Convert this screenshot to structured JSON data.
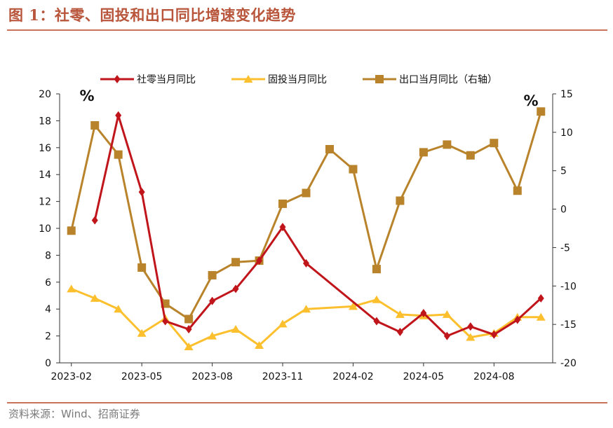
{
  "figure": {
    "title": "图 1：社零、固投和出口同比增速变化趋势",
    "source": "资料来源：Wind、招商证券"
  },
  "chart_data": {
    "type": "line",
    "title": "",
    "xlabel": "",
    "x_tick_labels": [
      "2023-02",
      "2023-05",
      "2023-08",
      "2023-11",
      "2024-02",
      "2024-05",
      "2024-08"
    ],
    "y_left": {
      "label": "%",
      "lim": [
        0,
        20
      ],
      "ticks": [
        0,
        2,
        4,
        6,
        8,
        10,
        12,
        14,
        16,
        18,
        20
      ]
    },
    "y_right": {
      "label": "%",
      "lim": [
        -20,
        15
      ],
      "ticks": [
        -20,
        -15,
        -10,
        -5,
        0,
        5,
        10,
        15
      ]
    },
    "legend_position": "top",
    "grid": false,
    "series": [
      {
        "name": "社零当月同比",
        "axis": "left",
        "color": "#c0151b",
        "marker": "diamond",
        "points": [
          {
            "x": "2023-03",
            "y": 10.6
          },
          {
            "x": "2023-04",
            "y": 18.4
          },
          {
            "x": "2023-05",
            "y": 12.7
          },
          {
            "x": "2023-06",
            "y": 3.1
          },
          {
            "x": "2023-07",
            "y": 2.5
          },
          {
            "x": "2023-08",
            "y": 4.6
          },
          {
            "x": "2023-09",
            "y": 5.5
          },
          {
            "x": "2023-10",
            "y": 7.6
          },
          {
            "x": "2023-11",
            "y": 10.1
          },
          {
            "x": "2023-12",
            "y": 7.4
          },
          {
            "x": "2024-03",
            "y": 3.1
          },
          {
            "x": "2024-04",
            "y": 2.3
          },
          {
            "x": "2024-05",
            "y": 3.7
          },
          {
            "x": "2024-06",
            "y": 2.0
          },
          {
            "x": "2024-07",
            "y": 2.7
          },
          {
            "x": "2024-08",
            "y": 2.1
          },
          {
            "x": "2024-09",
            "y": 3.2
          },
          {
            "x": "2024-10",
            "y": 4.8
          }
        ]
      },
      {
        "name": "固投当月同比",
        "axis": "left",
        "color": "#fcc02e",
        "marker": "triangle",
        "points": [
          {
            "x": "2023-02",
            "y": 5.5
          },
          {
            "x": "2023-03",
            "y": 4.8
          },
          {
            "x": "2023-04",
            "y": 4.0
          },
          {
            "x": "2023-05",
            "y": 2.2
          },
          {
            "x": "2023-06",
            "y": 3.3
          },
          {
            "x": "2023-07",
            "y": 1.2
          },
          {
            "x": "2023-08",
            "y": 2.0
          },
          {
            "x": "2023-09",
            "y": 2.5
          },
          {
            "x": "2023-10",
            "y": 1.3
          },
          {
            "x": "2023-11",
            "y": 2.9
          },
          {
            "x": "2023-12",
            "y": 4.0
          },
          {
            "x": "2024-02",
            "y": 4.2
          },
          {
            "x": "2024-03",
            "y": 4.7
          },
          {
            "x": "2024-04",
            "y": 3.6
          },
          {
            "x": "2024-05",
            "y": 3.5
          },
          {
            "x": "2024-06",
            "y": 3.6
          },
          {
            "x": "2024-07",
            "y": 1.9
          },
          {
            "x": "2024-08",
            "y": 2.2
          },
          {
            "x": "2024-09",
            "y": 3.4
          },
          {
            "x": "2024-10",
            "y": 3.4
          }
        ]
      },
      {
        "name": "出口当月同比（右轴）",
        "axis": "right",
        "color": "#b8832b",
        "marker": "square",
        "points": [
          {
            "x": "2023-02",
            "y": -2.8
          },
          {
            "x": "2023-03",
            "y": 10.9
          },
          {
            "x": "2023-04",
            "y": 7.1
          },
          {
            "x": "2023-05",
            "y": -7.6
          },
          {
            "x": "2023-06",
            "y": -12.3
          },
          {
            "x": "2023-07",
            "y": -14.3
          },
          {
            "x": "2023-08",
            "y": -8.6
          },
          {
            "x": "2023-09",
            "y": -6.9
          },
          {
            "x": "2023-10",
            "y": -6.7
          },
          {
            "x": "2023-11",
            "y": 0.7
          },
          {
            "x": "2023-12",
            "y": 2.1
          },
          {
            "x": "2024-01",
            "y": 7.8
          },
          {
            "x": "2024-02",
            "y": 5.2
          },
          {
            "x": "2024-03",
            "y": -7.8
          },
          {
            "x": "2024-04",
            "y": 1.1
          },
          {
            "x": "2024-05",
            "y": 7.4
          },
          {
            "x": "2024-06",
            "y": 8.4
          },
          {
            "x": "2024-07",
            "y": 7.0
          },
          {
            "x": "2024-08",
            "y": 8.6
          },
          {
            "x": "2024-09",
            "y": 2.4
          },
          {
            "x": "2024-10",
            "y": 12.7
          }
        ]
      }
    ]
  }
}
